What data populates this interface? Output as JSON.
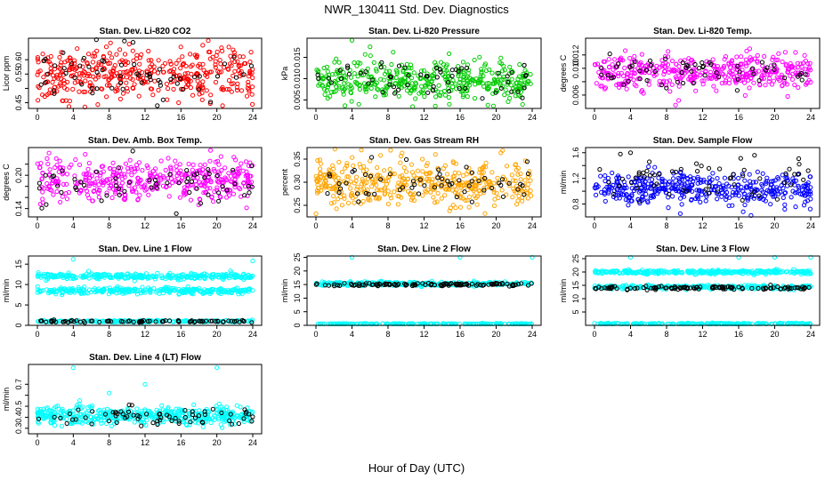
{
  "title": "NWR_130411  Std. Dev. Diagnostics",
  "xlabel": "Hour of Day (UTC)",
  "colors": {
    "red": "#ff0000",
    "green": "#00cc00",
    "magenta": "#ff00ff",
    "orange": "#ffa500",
    "blue": "#0000ff",
    "cyan": "#00ffff",
    "black": "#000000"
  },
  "chart_data": [
    {
      "id": "co2",
      "type": "scatter",
      "title": "Stan. Dev. Li-820 CO2",
      "ylabel": "Licor ppm",
      "xlim": [
        0,
        24
      ],
      "xticks": [
        0,
        4,
        8,
        12,
        16,
        20,
        24
      ],
      "ylim": [
        0.43,
        0.675
      ],
      "yticks": [
        0.45,
        0.5,
        0.55,
        0.6
      ],
      "ytick_labels": [
        "0.45",
        "",
        "0.55",
        "0.60"
      ],
      "color": "red",
      "series": [
        {
          "name": "main",
          "color": "red",
          "center": 0.55,
          "spread": 0.045,
          "count": 420
        },
        {
          "name": "highlight",
          "color": "black",
          "center": 0.55,
          "spread": 0.04,
          "count": 60
        }
      ],
      "outliers": [
        {
          "x": 9.7,
          "y": 0.665,
          "color": "black"
        }
      ]
    },
    {
      "id": "pressure",
      "type": "scatter",
      "title": "Stan. Dev. Li-820 Pressure",
      "ylabel": "kPa",
      "xlim": [
        0,
        24
      ],
      "xticks": [
        0,
        4,
        8,
        12,
        16,
        20,
        24
      ],
      "ylim": [
        0.003,
        0.0195
      ],
      "yticks": [
        0.005,
        0.01,
        0.015
      ],
      "ytick_labels": [
        "0.005",
        "0.010",
        "0.015"
      ],
      "color": "green",
      "series": [
        {
          "name": "main",
          "color": "green",
          "center": 0.0095,
          "spread": 0.0025,
          "count": 420
        },
        {
          "name": "highlight",
          "color": "black",
          "center": 0.0095,
          "spread": 0.0022,
          "count": 60
        }
      ],
      "outliers": [
        {
          "x": 4,
          "y": 0.019,
          "color": "green"
        },
        {
          "x": 6,
          "y": 0.0175,
          "color": "green"
        }
      ]
    },
    {
      "id": "temp",
      "type": "scatter",
      "title": "Stan. Dev. Li-820 Temp.",
      "ylabel": "degrees C",
      "xlim": [
        0,
        24
      ],
      "xticks": [
        0,
        4,
        8,
        12,
        16,
        20,
        24
      ],
      "ylim": [
        0.004,
        0.0145
      ],
      "yticks": [
        0.006,
        0.008,
        0.01,
        0.012
      ],
      "ytick_labels": [
        "0.006",
        "",
        "0.010",
        "0.012"
      ],
      "color": "magenta",
      "series": [
        {
          "name": "main",
          "color": "magenta",
          "center": 0.0095,
          "spread": 0.0013,
          "count": 420
        },
        {
          "name": "highlight",
          "color": "black",
          "center": 0.0095,
          "spread": 0.0012,
          "count": 60
        }
      ],
      "outliers": [
        {
          "x": 9,
          "y": 0.0045,
          "color": "magenta"
        }
      ]
    },
    {
      "id": "ambbox",
      "type": "scatter",
      "title": "Stan. Dev. Amb. Box Temp.",
      "ylabel": "degrees C",
      "xlim": [
        0,
        24
      ],
      "xticks": [
        0,
        4,
        8,
        12,
        16,
        20,
        24
      ],
      "ylim": [
        0.125,
        0.25
      ],
      "yticks": [
        0.14,
        0.16,
        0.18,
        0.2,
        0.22
      ],
      "ytick_labels": [
        "0.14",
        "",
        "",
        "0.20",
        ""
      ],
      "color": "magenta",
      "series": [
        {
          "name": "main",
          "color": "magenta",
          "center": 0.19,
          "spread": 0.018,
          "count": 420
        },
        {
          "name": "highlight",
          "color": "black",
          "center": 0.185,
          "spread": 0.018,
          "count": 60
        }
      ],
      "outliers": [
        {
          "x": 19.3,
          "y": 0.245,
          "color": "magenta"
        },
        {
          "x": 1.3,
          "y": 0.24,
          "color": "magenta"
        }
      ]
    },
    {
      "id": "rh",
      "type": "scatter",
      "title": "Stan. Dev. Gas Stream RH",
      "ylabel": "percent",
      "xlim": [
        0,
        24
      ],
      "xticks": [
        0,
        4,
        8,
        12,
        16,
        20,
        24
      ],
      "ylim": [
        0.225,
        0.375
      ],
      "yticks": [
        0.25,
        0.3,
        0.35
      ],
      "ytick_labels": [
        "0.25",
        "0.30",
        "0.35"
      ],
      "color": "orange",
      "series": [
        {
          "name": "main",
          "color": "orange",
          "center": 0.298,
          "spread": 0.025,
          "count": 420
        },
        {
          "name": "highlight",
          "color": "black",
          "center": 0.295,
          "spread": 0.022,
          "count": 60
        }
      ],
      "outliers": [
        {
          "x": 0,
          "y": 0.232,
          "color": "orange"
        },
        {
          "x": 2.1,
          "y": 0.372,
          "color": "orange"
        }
      ]
    },
    {
      "id": "sampleflow",
      "type": "scatter",
      "title": "Stan. Dev. Sample Flow",
      "ylabel": "ml/min",
      "xlim": [
        0,
        24
      ],
      "xticks": [
        0,
        4,
        8,
        12,
        16,
        20,
        24
      ],
      "ylim": [
        0.6,
        1.68
      ],
      "yticks": [
        0.8,
        1.0,
        1.2,
        1.4,
        1.6
      ],
      "ytick_labels": [
        "0.8",
        "",
        "1.2",
        "",
        "1.6"
      ],
      "color": "blue",
      "series": [
        {
          "name": "main",
          "color": "blue",
          "center": 1.05,
          "spread": 0.12,
          "count": 420
        },
        {
          "name": "highlight",
          "color": "black",
          "center": 1.2,
          "spread": 0.18,
          "count": 60
        }
      ],
      "outliers": [
        {
          "x": 16.5,
          "y": 0.68,
          "color": "blue"
        },
        {
          "x": 4,
          "y": 1.6,
          "color": "black"
        }
      ]
    },
    {
      "id": "line1",
      "type": "scatter",
      "title": "Stan. Dev. Line 1 Flow",
      "ylabel": "ml/min",
      "xlim": [
        0,
        24
      ],
      "xticks": [
        0,
        4,
        8,
        12,
        16,
        20,
        24
      ],
      "ylim": [
        0,
        17
      ],
      "yticks": [
        0,
        5,
        10,
        15
      ],
      "ytick_labels": [
        "0",
        "5",
        "10",
        "15"
      ],
      "color": "cyan",
      "bands": [
        {
          "center": 12.0,
          "spread": 0.35,
          "count": 300,
          "color": "cyan"
        },
        {
          "center": 8.5,
          "spread": 0.35,
          "count": 300,
          "color": "cyan"
        },
        {
          "center": 1.0,
          "spread": 0.12,
          "count": 200,
          "color": "cyan"
        },
        {
          "center": 1.0,
          "spread": 0.12,
          "count": 80,
          "color": "black"
        }
      ],
      "outliers": [
        {
          "x": 4,
          "y": 16.2,
          "color": "cyan"
        },
        {
          "x": 24,
          "y": 15.8,
          "color": "cyan"
        }
      ]
    },
    {
      "id": "line2",
      "type": "scatter",
      "title": "Stan. Dev. Line 2 Flow",
      "ylabel": "ml/min",
      "xlim": [
        0,
        24
      ],
      "xticks": [
        0,
        4,
        8,
        12,
        16,
        20,
        24
      ],
      "ylim": [
        0,
        25.5
      ],
      "yticks": [
        0,
        5,
        10,
        15,
        20,
        25
      ],
      "ytick_labels": [
        "0",
        "5",
        "10",
        "15",
        "20",
        "25"
      ],
      "color": "cyan",
      "bands": [
        {
          "center": 15.3,
          "spread": 0.35,
          "count": 300,
          "color": "cyan"
        },
        {
          "center": 15.0,
          "spread": 0.3,
          "count": 120,
          "color": "black"
        },
        {
          "center": 0.5,
          "spread": 0.12,
          "count": 220,
          "color": "cyan"
        }
      ],
      "outliers": [
        {
          "x": 4,
          "y": 25,
          "color": "cyan"
        },
        {
          "x": 16,
          "y": 25,
          "color": "cyan"
        },
        {
          "x": 24,
          "y": 25,
          "color": "cyan"
        }
      ]
    },
    {
      "id": "line3",
      "type": "scatter",
      "title": "Stan. Dev. Line 3 Flow",
      "ylabel": "ml/min",
      "xlim": [
        0,
        24
      ],
      "xticks": [
        0,
        4,
        8,
        12,
        16,
        20,
        24
      ],
      "ylim": [
        0,
        26
      ],
      "yticks": [
        5,
        10,
        15,
        20,
        25
      ],
      "ytick_labels": [
        "5",
        "10",
        "15",
        "20",
        "25"
      ],
      "color": "cyan",
      "bands": [
        {
          "center": 20.0,
          "spread": 0.35,
          "count": 300,
          "color": "cyan"
        },
        {
          "center": 14.3,
          "spread": 0.4,
          "count": 260,
          "color": "cyan"
        },
        {
          "center": 14.0,
          "spread": 0.35,
          "count": 110,
          "color": "black"
        },
        {
          "center": 0.6,
          "spread": 0.12,
          "count": 220,
          "color": "cyan"
        }
      ],
      "outliers": [
        {
          "x": 4,
          "y": 25.5,
          "color": "cyan"
        },
        {
          "x": 16,
          "y": 25.5,
          "color": "cyan"
        },
        {
          "x": 20,
          "y": 25.5,
          "color": "cyan"
        },
        {
          "x": 24,
          "y": 25.5,
          "color": "cyan"
        }
      ]
    },
    {
      "id": "line4",
      "type": "scatter",
      "title": "Stan. Dev. Line 4 (LT) Flow",
      "ylabel": "ml/min",
      "xlim": [
        0,
        24
      ],
      "xticks": [
        0,
        4,
        8,
        12,
        16,
        20,
        24
      ],
      "ylim": [
        0.25,
        0.88
      ],
      "yticks": [
        0.3,
        0.4,
        0.5,
        0.6,
        0.7
      ],
      "ytick_labels": [
        "0.3",
        "0.4",
        "0.5",
        "",
        "0.7"
      ],
      "color": "cyan",
      "series": [
        {
          "name": "main",
          "color": "cyan",
          "center": 0.415,
          "spread": 0.04,
          "count": 460
        },
        {
          "name": "highlight",
          "color": "black",
          "center": 0.41,
          "spread": 0.045,
          "count": 70
        }
      ],
      "outliers": [
        {
          "x": 4,
          "y": 0.85,
          "color": "cyan"
        },
        {
          "x": 12,
          "y": 0.7,
          "color": "cyan"
        },
        {
          "x": 20,
          "y": 0.85,
          "color": "cyan"
        },
        {
          "x": 8,
          "y": 0.62,
          "color": "cyan"
        }
      ]
    }
  ]
}
